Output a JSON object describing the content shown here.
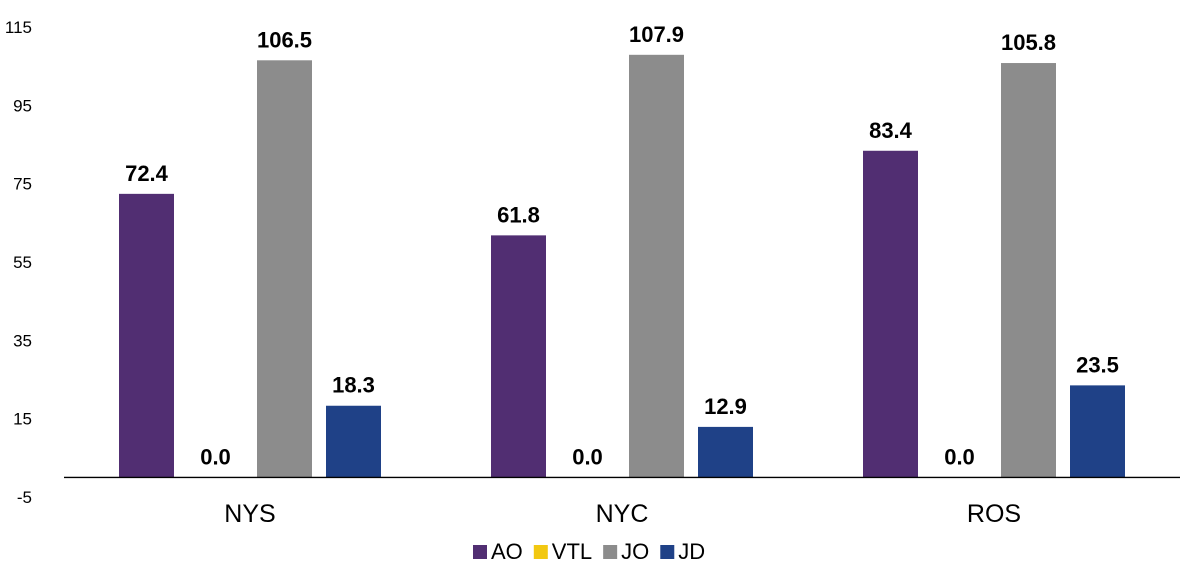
{
  "chart_data": {
    "type": "bar",
    "categories": [
      "NYS",
      "NYC",
      "ROS"
    ],
    "series": [
      {
        "name": "AO",
        "color": "#512E72",
        "values": [
          72.4,
          61.8,
          83.4
        ],
        "labels": [
          "72.4",
          "61.8",
          "83.4"
        ]
      },
      {
        "name": "VTL",
        "color": "#F2C811",
        "values": [
          0.0,
          0.0,
          0.0
        ],
        "labels": [
          "0.0",
          "0.0",
          "0.0"
        ]
      },
      {
        "name": "JO",
        "color": "#8C8C8C",
        "values": [
          106.5,
          107.9,
          105.8
        ],
        "labels": [
          "106.5",
          "107.9",
          "105.8"
        ]
      },
      {
        "name": "JD",
        "color": "#1F4187",
        "values": [
          18.3,
          12.9,
          23.5
        ],
        "labels": [
          "18.3",
          "12.9",
          "23.5"
        ]
      }
    ],
    "ylim": [
      -5,
      115
    ],
    "yticks": [
      "115",
      "95",
      "75",
      "55",
      "35",
      "15",
      "-5"
    ],
    "title": "",
    "xlabel": "",
    "ylabel": "",
    "grid": false,
    "legend_position": "bottom-center"
  }
}
